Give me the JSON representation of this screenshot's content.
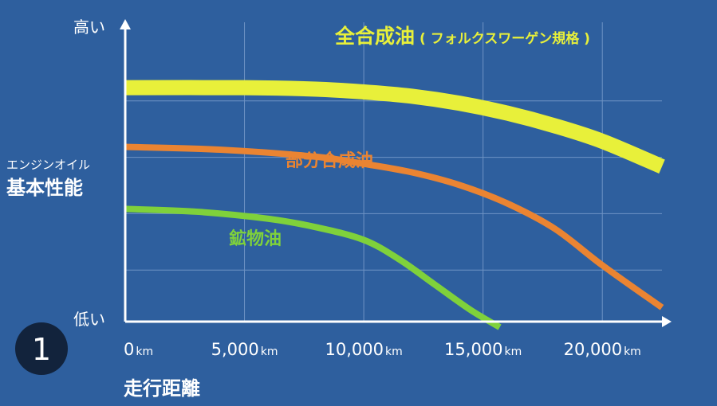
{
  "colors": {
    "background": "#2e5f9e",
    "grid": "#6f93c4",
    "axis": "#ffffff",
    "full_synthetic": "#e8f03a",
    "semi_synthetic": "#ea8432",
    "mineral": "#7fd13b",
    "badge_bg": "#12233c"
  },
  "badge": "1",
  "chart_data": {
    "type": "line",
    "xlabel": "走行距離",
    "ylabel_small": "エンジンオイル",
    "ylabel": "基本性能",
    "y_high_label": "高い",
    "y_low_label": "低い",
    "xlim": [
      0,
      22500
    ],
    "ylim": [
      0,
      100
    ],
    "x_ticks": [
      {
        "value": 0,
        "num": "0",
        "unit": "km"
      },
      {
        "value": 5000,
        "num": "5,000",
        "unit": "km"
      },
      {
        "value": 10000,
        "num": "10,000",
        "unit": "km"
      },
      {
        "value": 15000,
        "num": "15,000",
        "unit": "km"
      },
      {
        "value": 20000,
        "num": "20,000",
        "unit": "km"
      }
    ],
    "series": [
      {
        "key": "full_synthetic",
        "name": "全合成油",
        "name_suffix": "( フォルクスワーゲン規格 )",
        "x": [
          0,
          5000,
          8000,
          10000,
          12000,
          14000,
          16000,
          18000,
          20000,
          22500
        ],
        "values": [
          83,
          83,
          82.5,
          81.5,
          80,
          77.5,
          74,
          69.5,
          64,
          55
        ]
      },
      {
        "key": "semi_synthetic",
        "name": "部分合成油",
        "x": [
          0,
          4000,
          8000,
          10000,
          12000,
          14000,
          16000,
          18000,
          20000,
          22500
        ],
        "values": [
          62,
          61,
          58.5,
          56,
          53,
          48.5,
          42,
          33,
          20,
          5
        ]
      },
      {
        "key": "mineral",
        "name": "鉱物油",
        "x": [
          0,
          3000,
          6000,
          8000,
          10000,
          11500,
          13000,
          14500,
          15700
        ],
        "values": [
          40,
          39,
          36.5,
          33.5,
          29,
          22,
          13,
          4,
          -2
        ]
      }
    ]
  }
}
